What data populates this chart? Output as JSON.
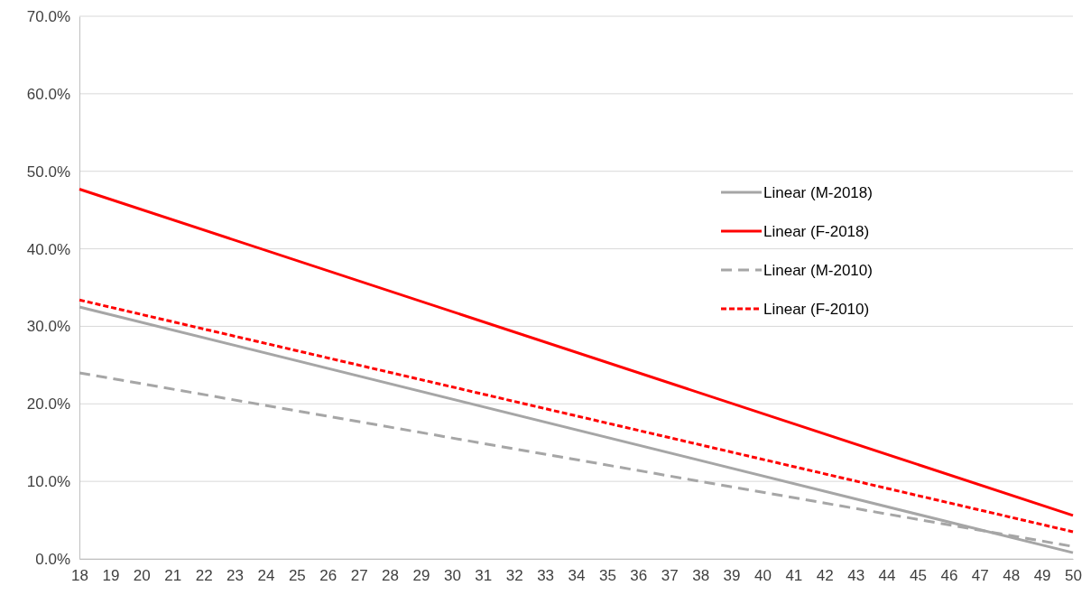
{
  "chart_data": {
    "type": "line",
    "x": [
      18,
      50
    ],
    "xlim": [
      18,
      50
    ],
    "xticks": [
      18,
      19,
      20,
      21,
      22,
      23,
      24,
      25,
      26,
      27,
      28,
      29,
      30,
      31,
      32,
      33,
      34,
      35,
      36,
      37,
      38,
      39,
      40,
      41,
      42,
      43,
      44,
      45,
      46,
      47,
      48,
      49,
      50
    ],
    "ylim": [
      0,
      70
    ],
    "yticks": [
      {
        "value": 0,
        "label": "0.0%"
      },
      {
        "value": 10,
        "label": "10.0%"
      },
      {
        "value": 20,
        "label": "20.0%"
      },
      {
        "value": 30,
        "label": "30.0%"
      },
      {
        "value": 40,
        "label": "40.0%"
      },
      {
        "value": 50,
        "label": "50.0%"
      },
      {
        "value": 60,
        "label": "60.0%"
      },
      {
        "value": 70,
        "label": "70.0%"
      }
    ],
    "grid": "y",
    "legend": "right",
    "series": [
      {
        "name": "Linear (M-2018)",
        "color": "#a6a6a6",
        "line_style": "solid",
        "values": [
          32.5,
          0.8
        ]
      },
      {
        "name": "Linear (F-2018)",
        "color": "#ff0000",
        "line_style": "solid",
        "values": [
          47.7,
          5.6
        ]
      },
      {
        "name": "Linear (M-2010)",
        "color": "#a6a6a6",
        "line_style": "dashed",
        "values": [
          24.0,
          1.6
        ]
      },
      {
        "name": "Linear (F-2010)",
        "color": "#ff0000",
        "line_style": "dotted",
        "values": [
          33.4,
          3.5
        ]
      }
    ]
  }
}
